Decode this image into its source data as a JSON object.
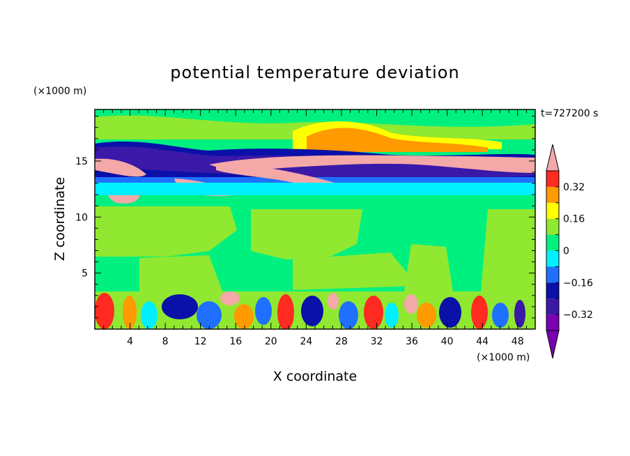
{
  "chart_data": {
    "type": "heatmap",
    "title": "potential temperature deviation",
    "xlabel": "X coordinate",
    "ylabel": "Z coordinate",
    "x_unit": "(×1000 m)",
    "z_unit": "(×1000 m)",
    "time_label": "t=727200 s",
    "xlim": [
      0,
      50
    ],
    "ylim": [
      0,
      19.6
    ],
    "x_ticks": [
      4,
      8,
      12,
      16,
      20,
      24,
      28,
      32,
      36,
      40,
      44,
      48
    ],
    "y_ticks": [
      5,
      10,
      15
    ],
    "colorbar": {
      "levels": [
        -0.4,
        -0.32,
        -0.24,
        -0.16,
        -0.08,
        0,
        0.08,
        0.16,
        0.24,
        0.32,
        0.4
      ],
      "labeled_ticks": [
        {
          "value": 0.32,
          "label": "0.32"
        },
        {
          "value": 0.16,
          "label": "0.16"
        },
        {
          "value": 0,
          "label": "0"
        },
        {
          "value": -0.16,
          "label": "−0.16"
        },
        {
          "value": -0.32,
          "label": "−0.32"
        }
      ],
      "colors": [
        "#7a00b0",
        "#3a18a8",
        "#0a10a8",
        "#2070ff",
        "#00f0ff",
        "#00f080",
        "#90e830",
        "#ffff00",
        "#ff9a00",
        "#ff2a20",
        "#f4a8a8"
      ],
      "extend": "both"
    }
  }
}
